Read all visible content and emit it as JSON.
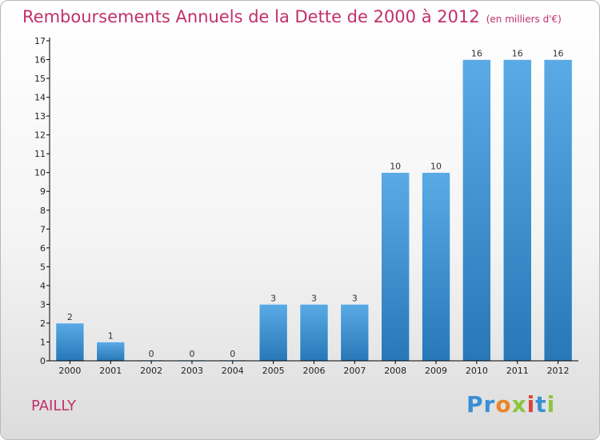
{
  "header": {
    "title": "Remboursements Annuels de la Dette de 2000 à 2012",
    "unit": "(en milliers d'€)"
  },
  "commune": "PAILLY",
  "logo": {
    "text": "Proxiti",
    "colors": [
      "#3a8fd6",
      "#e9852a",
      "#8cc63f",
      "#d9443c"
    ]
  },
  "colors": {
    "title": "#c0306a",
    "bar_top": "#5aaae6",
    "bar_bottom": "#2878b8",
    "axis": "#000000"
  },
  "chart_data": {
    "type": "bar",
    "title": "Remboursements Annuels de la Dette de 2000 à 2012",
    "xlabel": "",
    "ylabel": "",
    "categories": [
      "2000",
      "2001",
      "2002",
      "2003",
      "2004",
      "2005",
      "2006",
      "2007",
      "2008",
      "2009",
      "2010",
      "2011",
      "2012"
    ],
    "values": [
      2,
      1,
      0,
      0,
      0,
      3,
      3,
      3,
      10,
      10,
      16,
      16,
      16
    ],
    "data_labels": [
      "2",
      "1",
      "0",
      "0",
      "0",
      "3",
      "3",
      "3",
      "10",
      "10",
      "16",
      "16",
      "16"
    ],
    "ylim": [
      0,
      17
    ],
    "yticks": [
      "0",
      "1",
      "2",
      "3",
      "4",
      "5",
      "6",
      "7",
      "8",
      "9",
      "10",
      "11",
      "12",
      "13",
      "14",
      "15",
      "16",
      "17"
    ],
    "grid": false
  }
}
